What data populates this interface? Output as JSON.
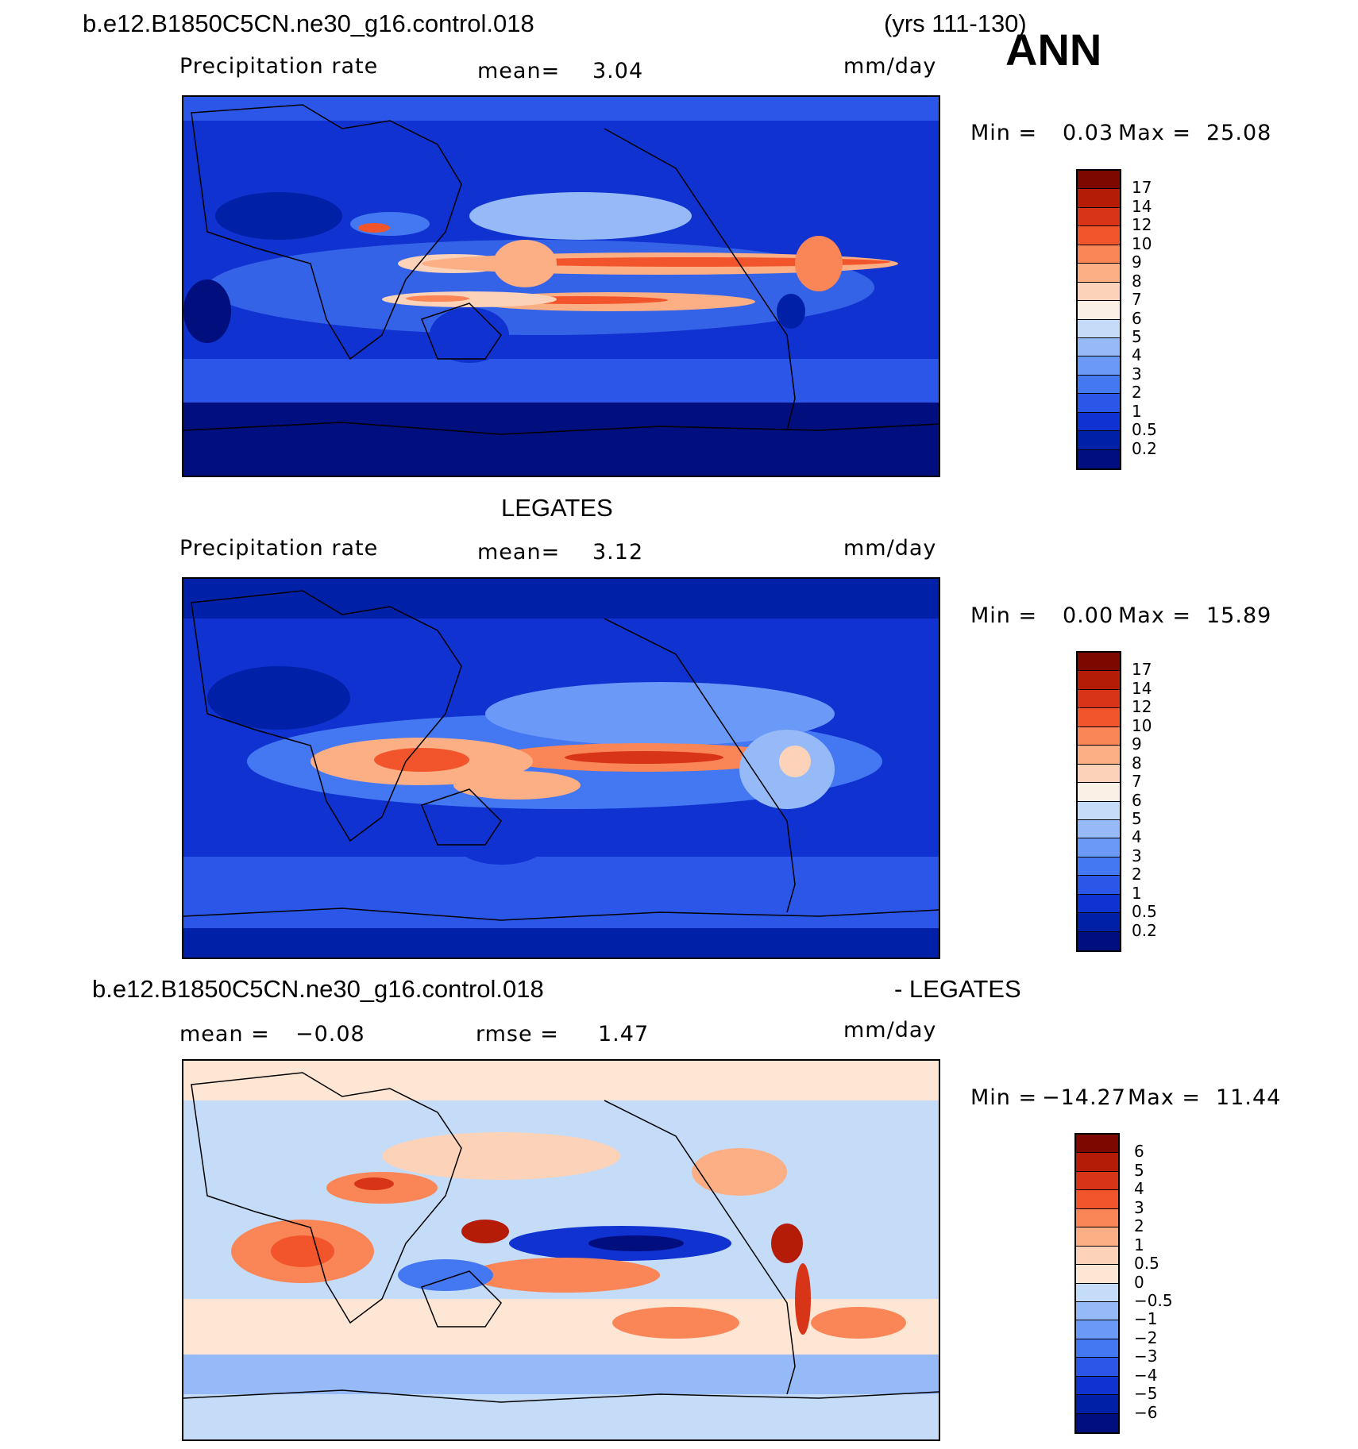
{
  "header": {
    "case_name": "b.e12.B1850C5CN.ne30_g16.control.018",
    "years": "(yrs 111-130)",
    "season": "ANN"
  },
  "colors": {
    "precip_scale": [
      "#000e7e",
      "#0020a8",
      "#1032d0",
      "#2c56e8",
      "#4477f2",
      "#6a99f8",
      "#96baf8",
      "#c4dcf8",
      "#fbf0e6",
      "#fcd2b8",
      "#fcae84",
      "#fa8556",
      "#f2552c",
      "#d83418",
      "#b41c08",
      "#7c0800"
    ],
    "diff_scale": [
      "#000e7e",
      "#0020a8",
      "#1032d0",
      "#2c56e8",
      "#4477f2",
      "#6a99f8",
      "#96baf8",
      "#c4dcf8",
      "#fde6d4",
      "#fcd2b8",
      "#fcae84",
      "#fa8556",
      "#f2552c",
      "#d83418",
      "#b41c08",
      "#7c0800"
    ]
  },
  "panels": [
    {
      "title": "",
      "variable": "Precipitation rate",
      "stat_label": "mean=",
      "stat_value": "3.04",
      "rmse_label": "",
      "rmse_value": "",
      "units": "mm/day",
      "min_label": "Min =",
      "min_value": "0.03",
      "max_label": "Max =",
      "max_value": "25.08",
      "colorbar_ticks": [
        "17",
        "14",
        "12",
        "10",
        "9",
        "8",
        "7",
        "6",
        "5",
        "4",
        "3",
        "2",
        "1",
        "0.5",
        "0.2"
      ]
    },
    {
      "title": "LEGATES",
      "variable": "Precipitation rate",
      "stat_label": "mean=",
      "stat_value": "3.12",
      "rmse_label": "",
      "rmse_value": "",
      "units": "mm/day",
      "min_label": "Min =",
      "min_value": "0.00",
      "max_label": "Max =",
      "max_value": "15.89",
      "colorbar_ticks": [
        "17",
        "14",
        "12",
        "10",
        "9",
        "8",
        "7",
        "6",
        "5",
        "4",
        "3",
        "2",
        "1",
        "0.5",
        "0.2"
      ]
    },
    {
      "title_left": "b.e12.B1850C5CN.ne30_g16.control.018",
      "title_right": "- LEGATES",
      "variable": "",
      "stat_label": "mean =",
      "stat_value": "−0.08",
      "rmse_label": "rmse =",
      "rmse_value": "1.47",
      "units": "mm/day",
      "min_label": "Min =",
      "min_value": "−14.27",
      "max_label": "Max =",
      "max_value": "11.44",
      "colorbar_ticks": [
        "6",
        "5",
        "4",
        "3",
        "2",
        "1",
        "0.5",
        "0",
        "−0.5",
        "−1",
        "−2",
        "−3",
        "−4",
        "−5",
        "−6"
      ]
    }
  ]
}
